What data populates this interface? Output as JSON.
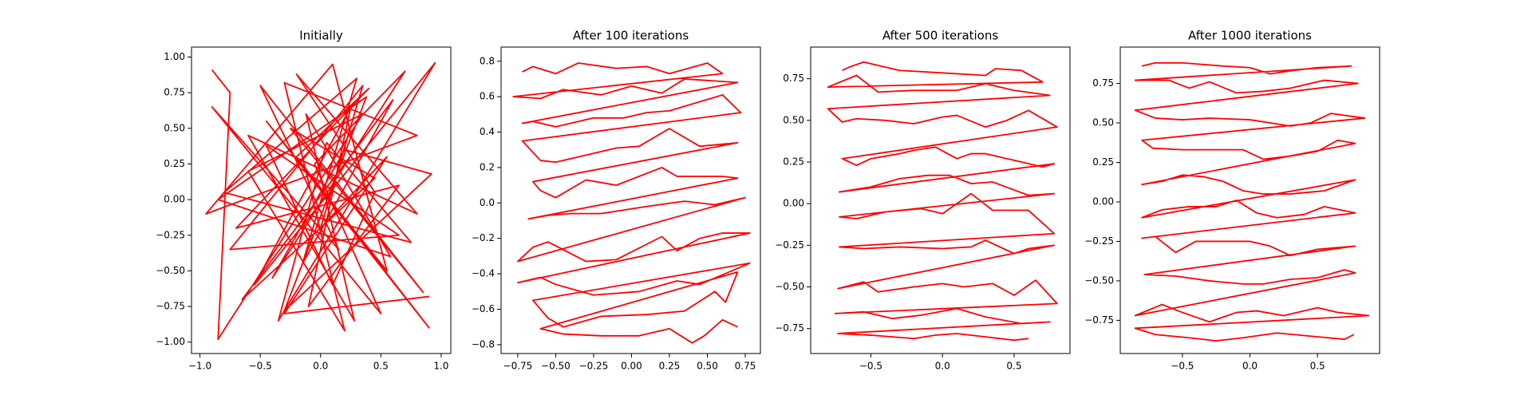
{
  "chart_data": [
    {
      "type": "line",
      "title": "Initially",
      "color": "#ff0000",
      "xlim": [
        -1.07,
        1.08
      ],
      "ylim": [
        -1.08,
        1.07
      ],
      "xticks": [
        {
          "value": -1,
          "label": "−1.0"
        },
        {
          "value": -0.5,
          "label": "−0.5"
        },
        {
          "value": 0,
          "label": "0.0"
        },
        {
          "value": 0.5,
          "label": "0.5"
        },
        {
          "value": 1,
          "label": "1.0"
        }
      ],
      "yticks": [
        {
          "value": -1,
          "label": "−1.00"
        },
        {
          "value": -0.75,
          "label": "−0.75"
        },
        {
          "value": -0.5,
          "label": "−0.50"
        },
        {
          "value": -0.25,
          "label": "−0.25"
        },
        {
          "value": 0,
          "label": "0.00"
        },
        {
          "value": 0.25,
          "label": "0.25"
        },
        {
          "value": 0.5,
          "label": "0.50"
        },
        {
          "value": 0.75,
          "label": "0.75"
        },
        {
          "value": 1,
          "label": "1.00"
        }
      ],
      "x": [
        -0.9,
        -0.75,
        -0.85,
        0.35,
        -0.6,
        0.2,
        -0.3,
        0.8,
        -0.95,
        0.1,
        0.55,
        -0.45,
        0.9,
        -0.2,
        0.4,
        -0.7,
        0.65,
        -0.1,
        0.25,
        -0.55,
        0.95,
        -0.35,
        0.05,
        0.75,
        -0.8,
        0.3,
        -0.15,
        0.6,
        -0.65,
        0.45,
        -0.25,
        0.85,
        -0.5,
        0.15,
        -0.9,
        0.5,
        -0.05,
        0.7,
        -0.4,
        0.2,
        0.92,
        -0.3,
        0.38,
        -0.85,
        0.58,
        -0.12,
        0.28,
        -0.6,
        0.8,
        -0.2,
        0.45,
        0.1,
        -0.45,
        0.65,
        -0.75,
        0.35,
        0.0,
        0.55,
        -0.3,
        0.9
      ],
      "values": [
        0.91,
        0.75,
        -0.98,
        0.6,
        0.2,
        -0.92,
        0.82,
        0.45,
        -0.1,
        0.95,
        -0.5,
        0.55,
        -0.9,
        0.3,
        0.78,
        -0.2,
        0.1,
        -0.75,
        0.65,
        -0.6,
        0.96,
        -0.85,
        0.4,
        -0.3,
        0.05,
        0.85,
        -0.45,
        0.7,
        -0.7,
        0.15,
        0.5,
        -0.65,
        0.8,
        -0.35,
        0.65,
        -0.8,
        0.25,
        0.9,
        -0.55,
        0.35,
        0.18,
        -0.78,
        0.72,
        0.0,
        -0.4,
        0.6,
        -0.85,
        0.45,
        -0.1,
        0.88,
        0.05,
        -0.6,
        0.38,
        -0.25,
        -0.35,
        0.8,
        -0.2,
        0.3,
        -0.8,
        -0.68
      ]
    },
    {
      "type": "line",
      "title": "After 100 iterations",
      "color": "#ff0000",
      "xlim": [
        -0.86,
        0.85
      ],
      "ylim": [
        -0.85,
        0.88
      ],
      "xticks": [
        {
          "value": -0.75,
          "label": "−0.75"
        },
        {
          "value": -0.5,
          "label": "−0.50"
        },
        {
          "value": -0.25,
          "label": "−0.25"
        },
        {
          "value": 0,
          "label": "0.00"
        },
        {
          "value": 0.25,
          "label": "0.25"
        },
        {
          "value": 0.5,
          "label": "0.50"
        },
        {
          "value": 0.75,
          "label": "0.75"
        }
      ],
      "yticks": [
        {
          "value": -0.8,
          "label": "−0.8"
        },
        {
          "value": -0.6,
          "label": "−0.6"
        },
        {
          "value": -0.4,
          "label": "−0.4"
        },
        {
          "value": -0.2,
          "label": "−0.2"
        },
        {
          "value": 0,
          "label": "0.0"
        },
        0.2,
        0.4,
        0.6,
        0.8
      ],
      "x": [
        -0.72,
        -0.65,
        -0.5,
        -0.35,
        -0.1,
        0.1,
        0.25,
        0.5,
        0.6,
        -0.78,
        -0.6,
        -0.45,
        -0.2,
        0,
        0.2,
        0.35,
        0.7,
        -0.72,
        -0.65,
        -0.5,
        -0.25,
        -0.05,
        0.1,
        0.25,
        0.6,
        0.72,
        -0.72,
        -0.6,
        -0.5,
        -0.3,
        -0.1,
        0.05,
        0.25,
        0.45,
        0.7,
        -0.65,
        -0.6,
        -0.5,
        -0.3,
        -0.1,
        0.2,
        0.3,
        0.45,
        0.6,
        0.7,
        -0.68,
        -0.55,
        -0.4,
        -0.2,
        0.1,
        0.35,
        0.55,
        0.75,
        -0.75,
        -0.65,
        -0.55,
        -0.3,
        -0.1,
        0.2,
        0.3,
        0.45,
        0.6,
        0.78,
        -0.75,
        -0.6,
        -0.5,
        -0.25,
        0.05,
        0.3,
        0.45,
        0.78,
        -0.65,
        -0.55,
        -0.45,
        -0.2,
        0.1,
        0.35,
        0.55,
        0.62,
        0.7,
        -0.6,
        -0.45,
        -0.2,
        0.05,
        0.25,
        0.4,
        0.48,
        0.6,
        0.7
      ],
      "values": [
        0.74,
        0.77,
        0.73,
        0.79,
        0.76,
        0.77,
        0.73,
        0.79,
        0.73,
        0.6,
        0.59,
        0.64,
        0.61,
        0.66,
        0.62,
        0.7,
        0.68,
        0.45,
        0.46,
        0.43,
        0.48,
        0.48,
        0.51,
        0.52,
        0.61,
        0.51,
        0.35,
        0.24,
        0.23,
        0.27,
        0.31,
        0.32,
        0.42,
        0.32,
        0.34,
        0.12,
        0.07,
        0.03,
        0.13,
        0.1,
        0.2,
        0.15,
        0.15,
        0.15,
        0.14,
        -0.09,
        -0.07,
        -0.06,
        -0.06,
        -0.02,
        0.01,
        -0.01,
        0.03,
        -0.33,
        -0.25,
        -0.22,
        -0.33,
        -0.32,
        -0.19,
        -0.27,
        -0.2,
        -0.17,
        -0.17,
        -0.45,
        -0.42,
        -0.46,
        -0.52,
        -0.5,
        -0.44,
        -0.46,
        -0.34,
        -0.55,
        -0.65,
        -0.7,
        -0.64,
        -0.63,
        -0.61,
        -0.5,
        -0.56,
        -0.39,
        -0.71,
        -0.74,
        -0.75,
        -0.75,
        -0.71,
        -0.79,
        -0.75,
        -0.66,
        -0.7
      ]
    },
    {
      "type": "line",
      "title": "After 500 iterations",
      "color": "#ff0000",
      "xlim": [
        -0.92,
        0.89
      ],
      "ylim": [
        -0.9,
        0.94
      ],
      "xticks": [
        {
          "value": -0.5,
          "label": "−0.5"
        },
        {
          "value": 0,
          "label": "0.0"
        },
        {
          "value": 0.5,
          "label": "0.5"
        }
      ],
      "yticks": [
        {
          "value": -0.75,
          "label": "−0.75"
        },
        {
          "value": -0.5,
          "label": "−0.50"
        },
        {
          "value": -0.25,
          "label": "−0.25"
        },
        {
          "value": 0,
          "label": "0.00"
        },
        0.25,
        {
          "value": 0.5,
          "label": "0.50"
        },
        0.75
      ],
      "x": [
        -0.7,
        -0.65,
        -0.55,
        -0.3,
        -0.1,
        0.3,
        0.37,
        0.55,
        0.7,
        -0.8,
        -0.6,
        -0.45,
        -0.2,
        0.1,
        0.3,
        0.5,
        0.75,
        -0.8,
        -0.7,
        -0.6,
        -0.4,
        -0.2,
        0,
        0.1,
        0.3,
        0.45,
        0.6,
        0.8,
        -0.7,
        -0.6,
        -0.5,
        -0.3,
        -0.2,
        -0.05,
        0.1,
        0.2,
        0.3,
        0.5,
        0.7,
        0.78,
        -0.72,
        -0.5,
        -0.3,
        -0.1,
        0.05,
        0.2,
        0.35,
        0.6,
        0.78,
        -0.72,
        -0.6,
        -0.4,
        -0.15,
        0,
        0.2,
        0.35,
        0.6,
        0.78,
        -0.72,
        -0.55,
        -0.3,
        0,
        0.2,
        0.3,
        0.5,
        0.6,
        0.78,
        -0.73,
        -0.55,
        -0.45,
        -0.2,
        0,
        0.15,
        0.35,
        0.5,
        0.65,
        0.8,
        -0.75,
        -0.55,
        -0.35,
        -0.15,
        0.1,
        0.3,
        0.55,
        0.75,
        -0.73,
        -0.5,
        -0.2,
        -0.05,
        0.1,
        0.3,
        0.5,
        0.6
      ],
      "values": [
        0.8,
        0.82,
        0.85,
        0.8,
        0.79,
        0.77,
        0.81,
        0.8,
        0.73,
        0.7,
        0.77,
        0.67,
        0.68,
        0.68,
        0.72,
        0.68,
        0.65,
        0.57,
        0.49,
        0.51,
        0.5,
        0.48,
        0.52,
        0.53,
        0.46,
        0.5,
        0.56,
        0.46,
        0.27,
        0.23,
        0.27,
        0.3,
        0.32,
        0.34,
        0.27,
        0.3,
        0.3,
        0.26,
        0.22,
        0.24,
        0.07,
        0.1,
        0.15,
        0.17,
        0.17,
        0.12,
        0.13,
        0.05,
        0.06,
        -0.08,
        -0.09,
        -0.05,
        -0.03,
        -0.06,
        0.06,
        -0.04,
        -0.04,
        -0.18,
        -0.26,
        -0.27,
        -0.26,
        -0.27,
        -0.26,
        -0.22,
        -0.3,
        -0.27,
        -0.25,
        -0.51,
        -0.47,
        -0.53,
        -0.5,
        -0.48,
        -0.5,
        -0.48,
        -0.55,
        -0.46,
        -0.6,
        -0.66,
        -0.65,
        -0.69,
        -0.67,
        -0.63,
        -0.68,
        -0.72,
        -0.71,
        -0.78,
        -0.79,
        -0.81,
        -0.79,
        -0.78,
        -0.8,
        -0.82,
        -0.81
      ]
    },
    {
      "type": "line",
      "title": "After 1000 iterations",
      "color": "#ff0000",
      "xlim": [
        -0.96,
        0.96
      ],
      "ylim": [
        -0.96,
        0.98
      ],
      "xticks": [
        {
          "value": -0.5,
          "label": "−0.5"
        },
        {
          "value": 0,
          "label": "0.0"
        },
        {
          "value": 0.5,
          "label": "0.5"
        }
      ],
      "yticks": [
        {
          "value": -0.75,
          "label": "−0.75"
        },
        {
          "value": -0.5,
          "label": "−0.50"
        },
        {
          "value": -0.25,
          "label": "−0.25"
        },
        {
          "value": 0,
          "label": "0.00"
        },
        0.25,
        {
          "value": 0.5,
          "label": "0.50"
        },
        0.75
      ],
      "x": [
        -0.8,
        -0.7,
        -0.5,
        -0.2,
        0,
        0.15,
        0.3,
        0.5,
        0.75,
        -0.85,
        -0.6,
        -0.45,
        -0.3,
        -0.1,
        0.1,
        0.3,
        0.55,
        0.8,
        -0.85,
        -0.7,
        -0.5,
        -0.3,
        0,
        0.15,
        0.3,
        0.45,
        0.6,
        0.85,
        -0.8,
        -0.72,
        -0.5,
        -0.3,
        -0.05,
        0.1,
        0.3,
        0.5,
        0.65,
        0.78,
        -0.8,
        -0.65,
        -0.5,
        -0.35,
        -0.2,
        -0.05,
        0.1,
        0.3,
        0.55,
        0.78,
        -0.8,
        -0.65,
        -0.45,
        -0.25,
        -0.1,
        0.05,
        0.2,
        0.4,
        0.55,
        0.78,
        -0.8,
        -0.7,
        -0.55,
        -0.4,
        -0.2,
        0,
        0.15,
        0.3,
        0.5,
        0.78,
        -0.78,
        -0.55,
        -0.3,
        -0.05,
        0.1,
        0.3,
        0.5,
        0.7,
        0.78,
        -0.85,
        -0.65,
        -0.5,
        -0.3,
        -0.1,
        0.05,
        0.25,
        0.5,
        0.65,
        0.88,
        -0.85,
        -0.7,
        -0.45,
        -0.25,
        -0.05,
        0.2,
        0.45,
        0.7,
        0.77
      ],
      "values": [
        0.86,
        0.88,
        0.88,
        0.86,
        0.85,
        0.81,
        0.83,
        0.85,
        0.86,
        0.77,
        0.77,
        0.72,
        0.76,
        0.69,
        0.7,
        0.72,
        0.77,
        0.75,
        0.58,
        0.53,
        0.52,
        0.53,
        0.52,
        0.5,
        0.48,
        0.5,
        0.56,
        0.53,
        0.39,
        0.34,
        0.33,
        0.33,
        0.33,
        0.27,
        0.29,
        0.32,
        0.39,
        0.37,
        0.11,
        0.13,
        0.17,
        0.16,
        0.13,
        0.07,
        0.05,
        0.05,
        0.07,
        0.14,
        -0.1,
        -0.05,
        -0.03,
        -0.03,
        0.01,
        -0.07,
        -0.1,
        -0.08,
        -0.03,
        -0.07,
        -0.23,
        -0.22,
        -0.32,
        -0.25,
        -0.25,
        -0.25,
        -0.28,
        -0.34,
        -0.3,
        -0.28,
        -0.46,
        -0.47,
        -0.5,
        -0.52,
        -0.52,
        -0.49,
        -0.48,
        -0.43,
        -0.45,
        -0.72,
        -0.65,
        -0.7,
        -0.76,
        -0.7,
        -0.69,
        -0.72,
        -0.67,
        -0.7,
        -0.72,
        -0.8,
        -0.84,
        -0.86,
        -0.88,
        -0.86,
        -0.83,
        -0.85,
        -0.87,
        -0.84
      ]
    }
  ]
}
